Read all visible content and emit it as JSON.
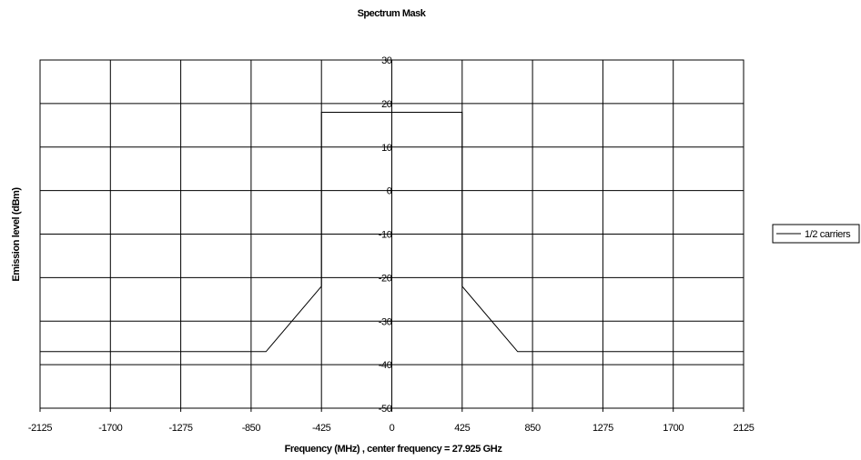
{
  "chart_data": {
    "type": "line",
    "title": "Spectrum Mask",
    "xlabel": "Frequency (MHz) , center frequency = 27.925 GHz",
    "ylabel": "Emission level (dBm)",
    "xlim": [
      -2125,
      2125
    ],
    "ylim": [
      -50,
      30
    ],
    "x_ticks": [
      -2125,
      -1700,
      -1275,
      -850,
      -425,
      0,
      425,
      850,
      1275,
      1700,
      2125
    ],
    "x_tick_labels": [
      "-2125",
      "-1700",
      "-1275",
      "-850",
      "-425",
      "0",
      "425",
      "850",
      "1275",
      "1700",
      "2125"
    ],
    "y_ticks": [
      -50,
      -40,
      -30,
      -20,
      -10,
      0,
      10,
      20,
      30
    ],
    "y_tick_labels": [
      "-50",
      "-40",
      "-30",
      "-20",
      "-10",
      "0",
      "10",
      "20",
      "30"
    ],
    "grid": true,
    "legend_position": "right",
    "series": [
      {
        "name": "1/2 carriers",
        "color": "#000000",
        "segments": [
          {
            "x": [
              -2125,
              -760,
              -425
            ],
            "y": [
              -37,
              -37,
              -22
            ]
          },
          {
            "x": [
              -425,
              -425,
              425,
              425
            ],
            "y": [
              -22,
              18,
              18,
              -22
            ]
          },
          {
            "x": [
              425,
              760,
              2125
            ],
            "y": [
              -22,
              -37,
              -37
            ]
          }
        ]
      }
    ]
  }
}
